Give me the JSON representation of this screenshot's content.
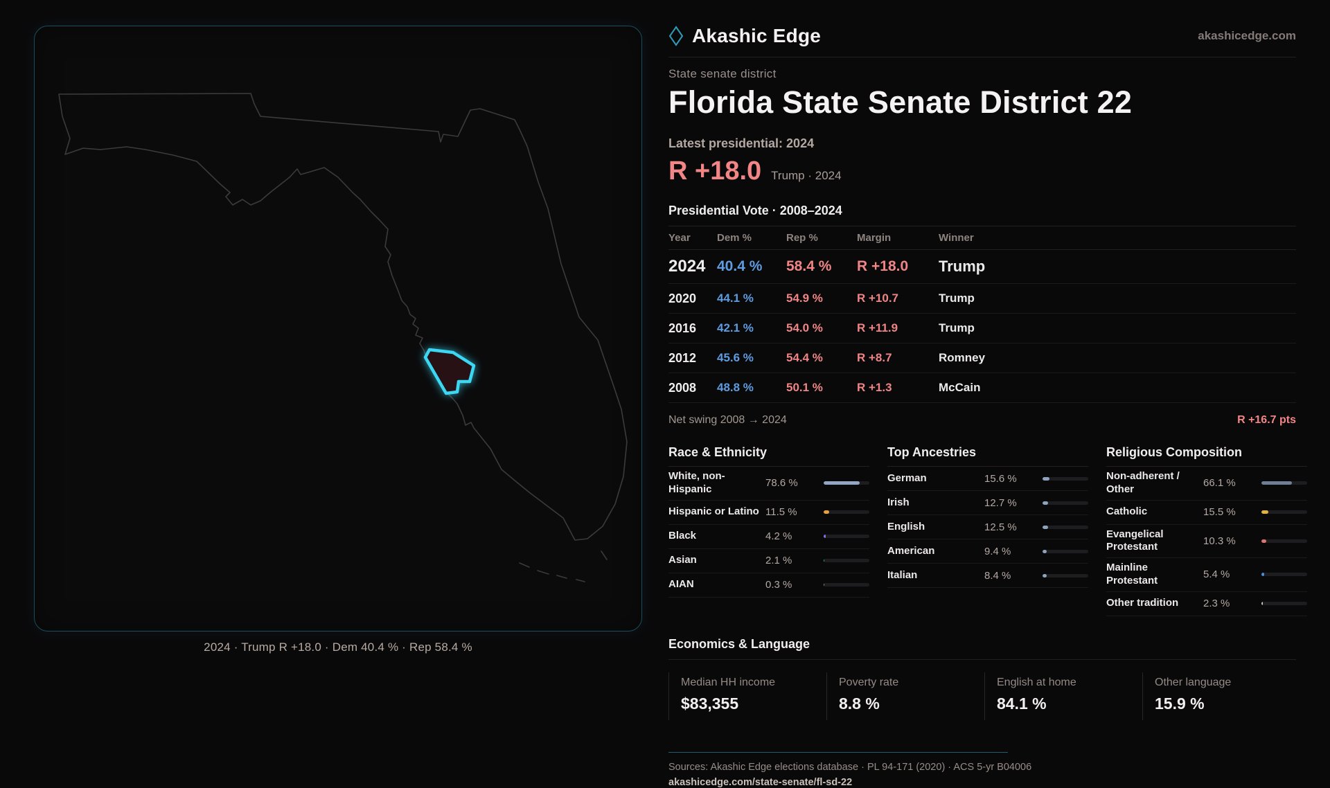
{
  "brand": {
    "name": "Akashic Edge",
    "site": "akashicedge.com"
  },
  "header": {
    "eyebrow": "State senate district",
    "title": "Florida State Senate District 22",
    "latest_label": "Latest presidential: 2024",
    "margin_value": "R +18.0",
    "margin_context": "Trump · 2024"
  },
  "vote_table": {
    "title": "Presidential Vote · 2008–2024",
    "columns": [
      "Year",
      "Dem %",
      "Rep %",
      "Margin",
      "Winner"
    ],
    "rows": [
      {
        "year": "2024",
        "dem": "40.4 %",
        "rep": "58.4 %",
        "margin": "R +18.0",
        "winner": "Trump"
      },
      {
        "year": "2020",
        "dem": "44.1 %",
        "rep": "54.9 %",
        "margin": "R +10.7",
        "winner": "Trump"
      },
      {
        "year": "2016",
        "dem": "42.1 %",
        "rep": "54.0 %",
        "margin": "R +11.9",
        "winner": "Trump"
      },
      {
        "year": "2012",
        "dem": "45.6 %",
        "rep": "54.4 %",
        "margin": "R +8.7",
        "winner": "Romney"
      },
      {
        "year": "2008",
        "dem": "48.8 %",
        "rep": "50.1 %",
        "margin": "R +1.3",
        "winner": "McCain"
      }
    ],
    "net_swing_label": "Net swing 2008 → 2024",
    "net_swing_value": "R +16.7 pts"
  },
  "demographics": {
    "race": {
      "heading": "Race & Ethnicity",
      "rows": [
        {
          "label": "White, non-Hispanic",
          "value": "78.6 %",
          "pct": 78.6,
          "color": "#93a7c4"
        },
        {
          "label": "Hispanic or Latino",
          "value": "11.5 %",
          "pct": 11.5,
          "color": "#e8a23c"
        },
        {
          "label": "Black",
          "value": "4.2 %",
          "pct": 4.2,
          "color": "#8571f0"
        },
        {
          "label": "Asian",
          "value": "2.1 %",
          "pct": 2.1,
          "color": "#2ea97c"
        },
        {
          "label": "AIAN",
          "value": "0.3 %",
          "pct": 0.3,
          "color": "#8a8a8a"
        }
      ]
    },
    "ancestries": {
      "heading": "Top Ancestries",
      "rows": [
        {
          "label": "German",
          "value": "15.6 %",
          "pct": 15.6,
          "color": "#8fa3bd"
        },
        {
          "label": "Irish",
          "value": "12.7 %",
          "pct": 12.7,
          "color": "#8fa3bd"
        },
        {
          "label": "English",
          "value": "12.5 %",
          "pct": 12.5,
          "color": "#8fa3bd"
        },
        {
          "label": "American",
          "value": "9.4 %",
          "pct": 9.4,
          "color": "#8fa3bd"
        },
        {
          "label": "Italian",
          "value": "8.4 %",
          "pct": 8.4,
          "color": "#8fa3bd"
        }
      ]
    },
    "religion": {
      "heading": "Religious Composition",
      "rows": [
        {
          "label": "Non-adherent / Other",
          "value": "66.1 %",
          "pct": 66.1,
          "color": "#717f95"
        },
        {
          "label": "Catholic",
          "value": "15.5 %",
          "pct": 15.5,
          "color": "#e3b23c"
        },
        {
          "label": "Evangelical Protestant",
          "value": "10.3 %",
          "pct": 10.3,
          "color": "#e07474"
        },
        {
          "label": "Mainline Protestant",
          "value": "5.4 %",
          "pct": 5.4,
          "color": "#4a8fd9"
        },
        {
          "label": "Other tradition",
          "value": "2.3 %",
          "pct": 2.3,
          "color": "#c9c9c9"
        }
      ]
    }
  },
  "economics": {
    "heading": "Economics & Language",
    "stats": [
      {
        "label": "Median HH income",
        "value": "$83,355"
      },
      {
        "label": "Poverty rate",
        "value": "8.8 %"
      },
      {
        "label": "English at home",
        "value": "84.1 %"
      },
      {
        "label": "Other language",
        "value": "15.9 %"
      }
    ]
  },
  "map": {
    "caption": "2024 · Trump R +18.0 · Dem 40.4 % · Rep 58.4 %"
  },
  "footer": {
    "sources": "Sources: Akashic Edge elections database · PL 94-171 (2020) · ACS 5-yr B04006",
    "permalink": "akashicedge.com/state-senate/fl-sd-22"
  },
  "colors": {
    "accent_cyan": "#3bd7f3",
    "dem_blue": "#5d9ce0",
    "rep_red": "#ef8585",
    "panel_border_teal": "#1b4d5c"
  }
}
